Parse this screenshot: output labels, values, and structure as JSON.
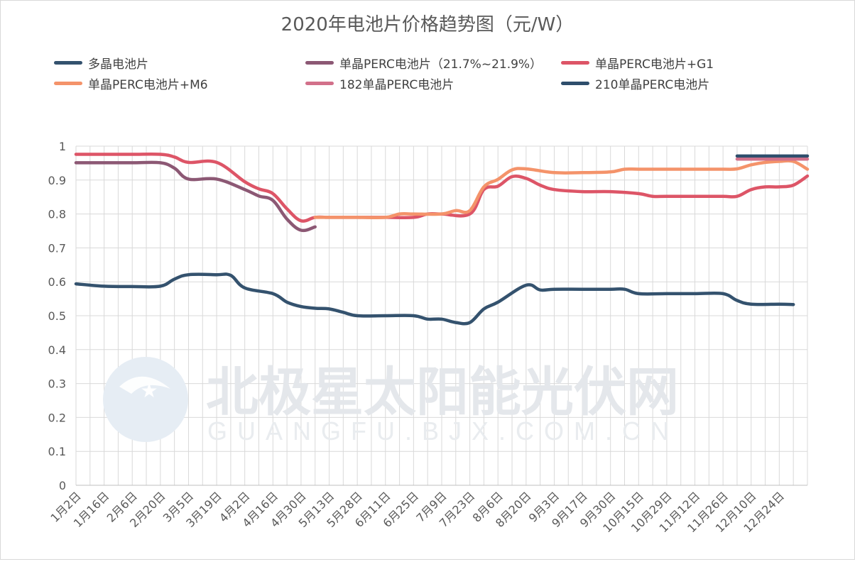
{
  "chart_data": {
    "type": "line",
    "title": "2020年电池片价格趋势图（元/W）",
    "xlabel": "",
    "ylabel": "",
    "ylim": [
      0,
      1
    ],
    "y_ticks": [
      "0",
      "0.1",
      "0.2",
      "0.3",
      "0.4",
      "0.5",
      "0.6",
      "0.7",
      "0.8",
      "0.9",
      "1"
    ],
    "categories": [
      "1月2日",
      "1月16日",
      "2月6日",
      "2月20日",
      "3月5日",
      "3月19日",
      "4月2日",
      "4月16日",
      "4月30日",
      "5月13日",
      "5月28日",
      "6月11日",
      "6月25日",
      "7月9日",
      "7月23日",
      "8月6日",
      "8月20日",
      "9月3日",
      "9月17日",
      "9月30日",
      "10月15日",
      "10月29日",
      "11月12日",
      "11月26日",
      "12月10日",
      "12月24日"
    ],
    "grid": true,
    "legend_position": "top",
    "series": [
      {
        "name": "多晶电池片",
        "color": "#34526e",
        "values": [
          [
            0,
            0.594
          ],
          [
            1,
            0.587
          ],
          [
            2,
            0.586
          ],
          [
            3,
            0.587
          ],
          [
            3.5,
            0.608
          ],
          [
            4,
            0.621
          ],
          [
            5,
            0.621
          ],
          [
            5.5,
            0.619
          ],
          [
            6,
            0.582
          ],
          [
            7,
            0.565
          ],
          [
            7.5,
            0.54
          ],
          [
            8,
            0.527
          ],
          [
            8.5,
            0.522
          ],
          [
            9,
            0.52
          ],
          [
            9.5,
            0.51
          ],
          [
            10,
            0.5
          ],
          [
            11,
            0.5
          ],
          [
            12,
            0.5
          ],
          [
            12.5,
            0.49
          ],
          [
            13,
            0.49
          ],
          [
            13.5,
            0.48
          ],
          [
            14,
            0.48
          ],
          [
            14.5,
            0.52
          ],
          [
            15,
            0.54
          ],
          [
            16,
            0.59
          ],
          [
            16.5,
            0.576
          ],
          [
            17,
            0.578
          ],
          [
            18,
            0.578
          ],
          [
            19,
            0.578
          ],
          [
            19.5,
            0.578
          ],
          [
            20,
            0.565
          ],
          [
            21,
            0.565
          ],
          [
            22,
            0.565
          ],
          [
            23,
            0.565
          ],
          [
            23.5,
            0.545
          ],
          [
            24,
            0.534
          ],
          [
            25,
            0.534
          ],
          [
            25.5,
            0.533
          ]
        ]
      },
      {
        "name": "单晶PERC电池片（21.7%~21.9%）",
        "color": "#8c5874",
        "values": [
          [
            0,
            0.951
          ],
          [
            1,
            0.951
          ],
          [
            2,
            0.951
          ],
          [
            3,
            0.951
          ],
          [
            3.5,
            0.935
          ],
          [
            4,
            0.903
          ],
          [
            5,
            0.903
          ],
          [
            6,
            0.872
          ],
          [
            6.5,
            0.853
          ],
          [
            7,
            0.84
          ],
          [
            7.5,
            0.785
          ],
          [
            8,
            0.752
          ],
          [
            8.5,
            0.762
          ]
        ]
      },
      {
        "name": "单晶PERC电池片+G1",
        "color": "#dd5567",
        "values": [
          [
            0,
            0.976
          ],
          [
            1,
            0.976
          ],
          [
            2,
            0.976
          ],
          [
            3,
            0.976
          ],
          [
            3.5,
            0.968
          ],
          [
            4,
            0.952
          ],
          [
            5,
            0.952
          ],
          [
            6,
            0.895
          ],
          [
            6.5,
            0.874
          ],
          [
            7,
            0.86
          ],
          [
            7.5,
            0.815
          ],
          [
            8,
            0.78
          ],
          [
            8.5,
            0.79
          ],
          [
            9,
            0.79
          ],
          [
            10,
            0.79
          ],
          [
            11,
            0.79
          ],
          [
            12,
            0.79
          ],
          [
            12.5,
            0.8
          ],
          [
            13,
            0.8
          ],
          [
            14,
            0.8
          ],
          [
            14.5,
            0.872
          ],
          [
            15,
            0.882
          ],
          [
            15.5,
            0.91
          ],
          [
            16,
            0.905
          ],
          [
            16.5,
            0.885
          ],
          [
            17,
            0.872
          ],
          [
            18,
            0.866
          ],
          [
            19,
            0.866
          ],
          [
            20,
            0.86
          ],
          [
            20.5,
            0.852
          ],
          [
            21,
            0.852
          ],
          [
            22,
            0.852
          ],
          [
            23,
            0.852
          ],
          [
            23.5,
            0.852
          ],
          [
            24,
            0.872
          ],
          [
            24.5,
            0.88
          ],
          [
            25,
            0.88
          ],
          [
            25.5,
            0.885
          ],
          [
            26,
            0.912
          ]
        ]
      },
      {
        "name": "单晶PERC电池片+M6",
        "color": "#f4936a",
        "values": [
          [
            8.5,
            0.79
          ],
          [
            9,
            0.79
          ],
          [
            10,
            0.79
          ],
          [
            11,
            0.79
          ],
          [
            11.5,
            0.8
          ],
          [
            12,
            0.8
          ],
          [
            13,
            0.8
          ],
          [
            13.5,
            0.81
          ],
          [
            14,
            0.81
          ],
          [
            14.5,
            0.88
          ],
          [
            15,
            0.902
          ],
          [
            15.5,
            0.93
          ],
          [
            16,
            0.933
          ],
          [
            17,
            0.922
          ],
          [
            18,
            0.922
          ],
          [
            19,
            0.924
          ],
          [
            19.5,
            0.932
          ],
          [
            20,
            0.932
          ],
          [
            21,
            0.932
          ],
          [
            22,
            0.932
          ],
          [
            23,
            0.932
          ],
          [
            23.5,
            0.933
          ],
          [
            24,
            0.945
          ],
          [
            24.5,
            0.952
          ],
          [
            25,
            0.955
          ],
          [
            25.5,
            0.955
          ],
          [
            26,
            0.932
          ]
        ]
      },
      {
        "name": "182单晶PERC电池片",
        "color": "#d2708a",
        "values": [
          [
            23.5,
            0.962
          ],
          [
            24,
            0.962
          ],
          [
            25,
            0.962
          ],
          [
            26,
            0.962
          ]
        ]
      },
      {
        "name": "210单晶PERC电池片",
        "color": "#2e4e6c",
        "values": [
          [
            23.5,
            0.971
          ],
          [
            24,
            0.971
          ],
          [
            25,
            0.971
          ],
          [
            26,
            0.971
          ]
        ]
      }
    ]
  },
  "watermark": {
    "logo_text": "北极星太阳能光伏网",
    "logo_subtext": "GUANGFU.BJX.COM.CN"
  }
}
